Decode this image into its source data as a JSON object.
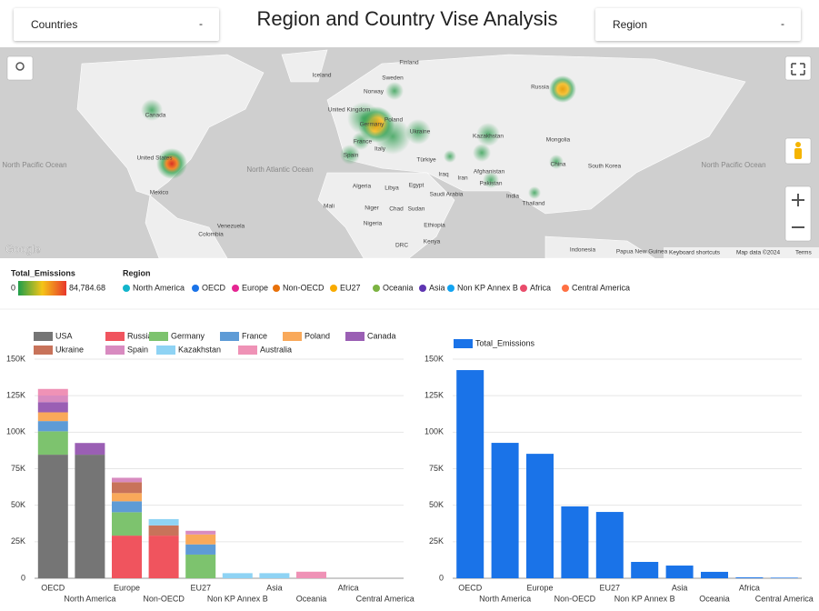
{
  "header": {
    "title": "Region and Country Vise Analysis",
    "filters": [
      {
        "label": "Countries",
        "arrow": "-"
      },
      {
        "label": "Region",
        "arrow": "-"
      }
    ]
  },
  "map": {
    "labels": [
      "Finland",
      "Iceland",
      "Norway",
      "Sweden",
      "United Kingdom",
      "Canada",
      "Russia",
      "Germany",
      "Poland",
      "Ukraine",
      "France",
      "Italy",
      "Spain",
      "Kazakhstan",
      "Mongolia",
      "North Pacific Ocean",
      "United States",
      "North Atlantic Ocean",
      "Türkiye",
      "Iraq",
      "Iran",
      "Afghanistan",
      "Pakistan",
      "China",
      "South Korea",
      "North Pacific Ocean",
      "Mexico",
      "Algeria",
      "Libya",
      "Egypt",
      "Saudi Arabia",
      "India",
      "Thailand",
      "Mali",
      "Niger",
      "Chad",
      "Sudan",
      "Venezuela",
      "Colombia",
      "Nigeria",
      "Ethiopia",
      "Kenya",
      "DRC",
      "Indonesia",
      "Papua New Guinea"
    ],
    "brand": "Google",
    "footer": [
      "Keyboard shortcuts",
      "Map data ©2024",
      "Terms"
    ]
  },
  "color_legend": {
    "title": "Total_Emissions",
    "min": 0,
    "max": {
      "value": 84784.68,
      "label": "84,784.68"
    }
  },
  "region_legend": {
    "title": "Region",
    "items": [
      {
        "name": "North America",
        "color": "#12b5cb"
      },
      {
        "name": "OECD",
        "color": "#1a73e8"
      },
      {
        "name": "Europe",
        "color": "#e52592"
      },
      {
        "name": "Non-OECD",
        "color": "#e8710a"
      },
      {
        "name": "EU27",
        "color": "#f9ab00"
      },
      {
        "name": "Oceania",
        "color": "#7cb342"
      },
      {
        "name": "Asia",
        "color": "#5e35b1"
      },
      {
        "name": "Non KP Annex B",
        "color": "#12a4f2"
      },
      {
        "name": "Africa",
        "color": "#e94c6b"
      },
      {
        "name": "Central America",
        "color": "#ff7043"
      }
    ]
  },
  "chart_data": [
    {
      "type": "bar",
      "stacked": true,
      "categories": [
        "OECD",
        "North America",
        "Europe",
        "Non-OECD",
        "EU27",
        "Non KP Annex B",
        "Asia",
        "Oceania",
        "Africa",
        "Central America"
      ],
      "series": [
        {
          "name": "USA",
          "color": "#757575",
          "values": [
            84600,
            84600,
            null,
            null,
            null,
            null,
            null,
            null,
            null,
            null
          ]
        },
        {
          "name": "Russia",
          "color": "#f0545e",
          "values": [
            null,
            null,
            29200,
            29200,
            null,
            null,
            null,
            null,
            null,
            null
          ]
        },
        {
          "name": "Germany",
          "color": "#7dc36e",
          "values": [
            16000,
            null,
            16000,
            null,
            16200,
            null,
            null,
            null,
            null,
            null
          ]
        },
        {
          "name": "France",
          "color": "#5e9bd6",
          "values": [
            7000,
            null,
            7500,
            null,
            7000,
            null,
            null,
            null,
            null,
            null
          ]
        },
        {
          "name": "Poland",
          "color": "#f9a95a",
          "values": [
            6000,
            null,
            5600,
            null,
            6800,
            null,
            null,
            null,
            null,
            null
          ]
        },
        {
          "name": "Canada",
          "color": "#9a5fb4",
          "values": [
            7000,
            8000,
            null,
            null,
            null,
            null,
            null,
            null,
            null,
            null
          ]
        },
        {
          "name": "Ukraine",
          "color": "#c8735a",
          "values": [
            null,
            null,
            7500,
            7000,
            null,
            null,
            null,
            null,
            null,
            null
          ]
        },
        {
          "name": "Spain",
          "color": "#d88bc0",
          "values": [
            4500,
            null,
            3000,
            null,
            2500,
            null,
            null,
            null,
            null,
            null
          ]
        },
        {
          "name": "Kazakhstan",
          "color": "#8fd3f4",
          "values": [
            null,
            null,
            null,
            4300,
            null,
            3500,
            3500,
            null,
            null,
            null
          ]
        },
        {
          "name": "Australia",
          "color": "#ef92b6",
          "values": [
            4500,
            null,
            null,
            null,
            null,
            null,
            null,
            4500,
            null,
            null
          ]
        }
      ],
      "ylim": [
        0,
        150000
      ],
      "yticks": [
        0,
        {
          "value": 25000,
          "label": "25K"
        },
        {
          "value": 50000,
          "label": "50K"
        },
        {
          "value": 75000,
          "label": "75K"
        },
        {
          "value": 100000,
          "label": "100K"
        },
        {
          "value": 125000,
          "label": "125K"
        },
        {
          "value": 150000,
          "label": "150K"
        }
      ],
      "grid": true
    },
    {
      "type": "bar",
      "categories": [
        "OECD",
        "North America",
        "Europe",
        "Non-OECD",
        "EU27",
        "Non KP Annex B",
        "Asia",
        "Oceania",
        "Africa",
        "Central America"
      ],
      "series": [
        {
          "name": "Total_Emissions",
          "color": "#1a73e8",
          "values": [
            142500,
            92700,
            85200,
            49200,
            45400,
            11200,
            8700,
            4400,
            600,
            400
          ]
        }
      ],
      "ylim": [
        0,
        150000
      ],
      "yticks": [
        0,
        {
          "value": 25000,
          "label": "25K"
        },
        {
          "value": 50000,
          "label": "50K"
        },
        {
          "value": 75000,
          "label": "75K"
        },
        {
          "value": 100000,
          "label": "100K"
        },
        {
          "value": 125000,
          "label": "125K"
        },
        {
          "value": 150000,
          "label": "150K"
        }
      ],
      "grid": true
    }
  ]
}
